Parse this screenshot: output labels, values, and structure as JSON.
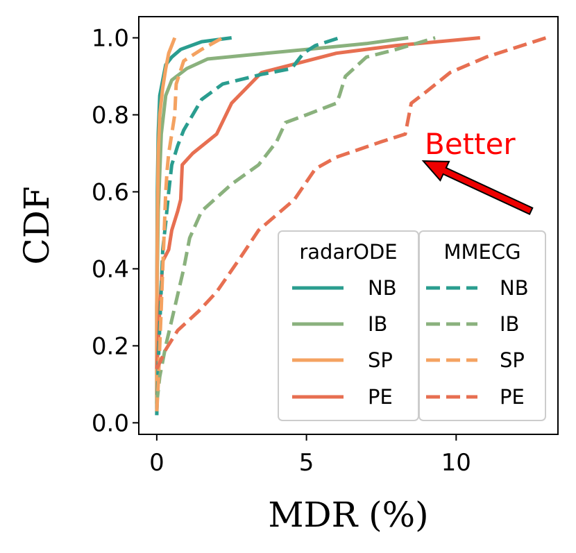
{
  "chart_data": {
    "type": "line",
    "xlabel": "MDR (%)",
    "ylabel": "CDF",
    "xlim": [
      -0.6,
      13.4
    ],
    "ylim": [
      -0.03,
      1.055
    ],
    "x_ticks": [
      "0",
      "5",
      "10"
    ],
    "x_tick_values": [
      0,
      5,
      10
    ],
    "y_ticks": [
      "0.0",
      "0.2",
      "0.4",
      "0.6",
      "0.8",
      "1.0"
    ],
    "y_tick_values": [
      0,
      0.2,
      0.4,
      0.6,
      0.8,
      1.0
    ],
    "grid": false,
    "annotation": {
      "text": "Better",
      "color": "#ff0000",
      "arrow_from": [
        12.5,
        0.55
      ],
      "arrow_to": [
        8.9,
        0.68
      ]
    },
    "legend": {
      "placement": "lower-right",
      "groups": [
        {
          "title": "radarODE",
          "entries": [
            "NB",
            "IB",
            "SP",
            "PE"
          ],
          "style": "solid"
        },
        {
          "title": "MMECG",
          "entries": [
            "NB",
            "IB",
            "SP",
            "PE"
          ],
          "style": "dashed"
        }
      ]
    },
    "series": [
      {
        "name": "NB",
        "group": "radarODE",
        "style": "solid",
        "color": "#2a9d8f",
        "x": [
          0,
          0,
          0.02,
          0.05,
          0.1,
          0.3,
          0.5,
          0.8,
          1.5,
          2.5
        ],
        "y": [
          0.02,
          0.3,
          0.6,
          0.75,
          0.85,
          0.93,
          0.95,
          0.97,
          0.99,
          1.0
        ]
      },
      {
        "name": "IB",
        "group": "radarODE",
        "style": "solid",
        "color": "#8ab17d",
        "x": [
          0,
          0,
          0.05,
          0.15,
          0.3,
          0.5,
          1.0,
          1.7,
          3.0,
          5.0,
          7.0,
          8.4
        ],
        "y": [
          0.05,
          0.3,
          0.55,
          0.75,
          0.85,
          0.89,
          0.92,
          0.945,
          0.955,
          0.97,
          0.985,
          1.0
        ]
      },
      {
        "name": "SP",
        "group": "radarODE",
        "style": "solid",
        "color": "#f4a261",
        "x": [
          0,
          0,
          0.02,
          0.05,
          0.1,
          0.2,
          0.3,
          0.4,
          0.5,
          0.55,
          0.6
        ],
        "y": [
          0.03,
          0.3,
          0.5,
          0.7,
          0.8,
          0.87,
          0.92,
          0.96,
          0.98,
          0.99,
          1.0
        ]
      },
      {
        "name": "PE",
        "group": "radarODE",
        "style": "solid",
        "color": "#e76f51",
        "x": [
          0,
          0.05,
          0.1,
          0.2,
          0.4,
          0.5,
          0.7,
          0.8,
          0.85,
          1.2,
          2.0,
          2.5,
          3.5,
          4.5,
          6.0,
          8.0,
          10.8
        ],
        "y": [
          0.14,
          0.2,
          0.3,
          0.42,
          0.45,
          0.5,
          0.55,
          0.58,
          0.67,
          0.7,
          0.75,
          0.83,
          0.91,
          0.93,
          0.96,
          0.98,
          1.0
        ]
      },
      {
        "name": "NB",
        "group": "MMECG",
        "style": "dashed",
        "color": "#2a9d8f",
        "x": [
          0,
          0.05,
          0.1,
          0.15,
          0.2,
          0.3,
          0.4,
          0.5,
          0.7,
          0.9,
          1.2,
          1.5,
          2.2,
          3.5,
          4.5,
          4.9,
          5.3,
          6.1
        ],
        "y": [
          0.02,
          0.15,
          0.25,
          0.35,
          0.45,
          0.52,
          0.6,
          0.67,
          0.72,
          0.76,
          0.8,
          0.84,
          0.88,
          0.905,
          0.92,
          0.96,
          0.98,
          1.0
        ]
      },
      {
        "name": "IB",
        "group": "MMECG",
        "style": "dashed",
        "color": "#8ab17d",
        "x": [
          0,
          0.1,
          0.3,
          0.6,
          0.9,
          1.1,
          1.5,
          2.5,
          3.4,
          4.0,
          4.3,
          5.0,
          6.0,
          6.1,
          6.3,
          7.0,
          8.0,
          9.3
        ],
        "y": [
          0.05,
          0.12,
          0.2,
          0.3,
          0.4,
          0.48,
          0.55,
          0.62,
          0.67,
          0.73,
          0.78,
          0.8,
          0.83,
          0.85,
          0.9,
          0.95,
          0.97,
          1.0
        ]
      },
      {
        "name": "SP",
        "group": "MMECG",
        "style": "dashed",
        "color": "#f4a261",
        "x": [
          0,
          0.05,
          0.1,
          0.15,
          0.2,
          0.25,
          0.3,
          0.35,
          0.4,
          0.5,
          0.6,
          0.65,
          0.9,
          1.5,
          2.2
        ],
        "y": [
          0.03,
          0.1,
          0.2,
          0.3,
          0.4,
          0.5,
          0.6,
          0.66,
          0.7,
          0.75,
          0.8,
          0.88,
          0.94,
          0.97,
          1.0
        ]
      },
      {
        "name": "PE",
        "group": "MMECG",
        "style": "dashed",
        "color": "#e76f51",
        "x": [
          0,
          0.3,
          0.7,
          1.4,
          2.0,
          2.8,
          3.4,
          4.0,
          4.6,
          5.3,
          6.0,
          7.5,
          8.3,
          8.5,
          9.0,
          9.8,
          11.0,
          12.2,
          13.0
        ],
        "y": [
          0.14,
          0.19,
          0.24,
          0.29,
          0.34,
          0.43,
          0.5,
          0.54,
          0.58,
          0.66,
          0.69,
          0.73,
          0.75,
          0.83,
          0.86,
          0.91,
          0.95,
          0.98,
          1.0
        ]
      }
    ]
  }
}
